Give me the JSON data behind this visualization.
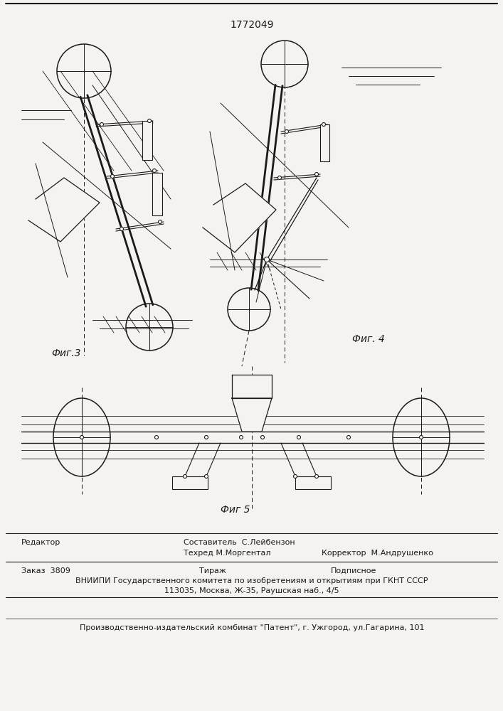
{
  "patent_number": "1772049",
  "bg": "#f5f3ef",
  "lc": "#1a1a1a",
  "fig3_label": "Фиг.3",
  "fig4_label": "Фиг. 4",
  "fig5_label": "Фиг 5",
  "footer_editor": "Редактор",
  "footer_compiler_label": "Составитель",
  "footer_compiler": "С.Лейбензон",
  "footer_techred_label": "Техред",
  "footer_techred": "М.Моргентал",
  "footer_corrector_label": "Корректор",
  "footer_corrector": "М.Андрушенко",
  "footer_order_label": "Заказ",
  "footer_order": "3809",
  "footer_tirazh": "Тираж",
  "footer_podpisnoe": "Подписное",
  "footer_vniipи": "ВНИИПИ Государственного комитета по изобретениям и открытиям при ГКНТ СССР",
  "footer_address": "113035, Москва, Ж-35, Раушская наб., 4/5",
  "footer_publisher": "Производственно-издательский комбинат \"Патент\", г. Ужгород, ул.Гагарина, 101"
}
